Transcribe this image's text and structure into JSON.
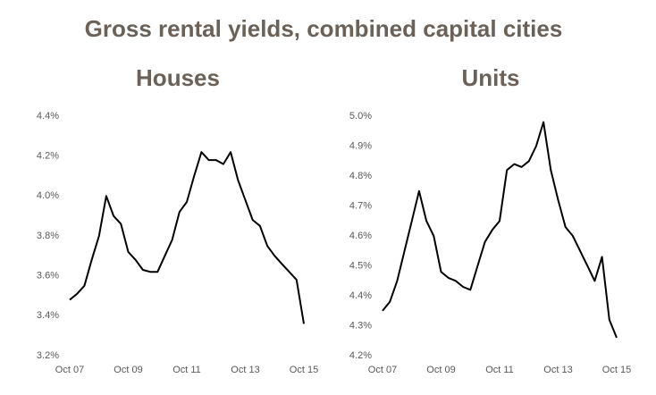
{
  "title": "Gross rental yields, combined capital cities",
  "chart_data": [
    {
      "type": "line",
      "title": "Houses",
      "color": "#000000",
      "categories": [
        "Oct 07",
        null,
        null,
        null,
        null,
        null,
        null,
        null,
        "Oct 09",
        null,
        null,
        null,
        null,
        null,
        null,
        null,
        "Oct 11",
        null,
        null,
        null,
        null,
        null,
        null,
        null,
        "Oct 13",
        null,
        null,
        null,
        null,
        null,
        null,
        null,
        "Oct 15"
      ],
      "values": [
        3.48,
        3.51,
        3.55,
        3.68,
        3.8,
        4.0,
        3.9,
        3.86,
        3.72,
        3.68,
        3.63,
        3.62,
        3.62,
        3.7,
        3.78,
        3.92,
        3.97,
        4.1,
        4.22,
        4.18,
        4.18,
        4.16,
        4.22,
        4.08,
        3.98,
        3.88,
        3.85,
        3.75,
        3.7,
        3.66,
        3.62,
        3.58,
        3.36
      ],
      "ylim": [
        3.2,
        4.4
      ],
      "yticks": [
        {
          "value": 3.2,
          "label": "3.2%"
        },
        {
          "value": 3.4,
          "label": "3.4%"
        },
        {
          "value": 3.6,
          "label": "3.6%"
        },
        {
          "value": 3.8,
          "label": "3.8%"
        },
        {
          "value": 4.0,
          "label": "4.0%"
        },
        {
          "value": 4.2,
          "label": "4.2%"
        },
        {
          "value": 4.4,
          "label": "4.4%"
        }
      ]
    },
    {
      "type": "line",
      "title": "Units",
      "color": "#000000",
      "categories": [
        "Oct 07",
        null,
        null,
        null,
        null,
        null,
        null,
        null,
        "Oct 09",
        null,
        null,
        null,
        null,
        null,
        null,
        null,
        "Oct 11",
        null,
        null,
        null,
        null,
        null,
        null,
        null,
        "Oct 13",
        null,
        null,
        null,
        null,
        null,
        null,
        null,
        "Oct 15"
      ],
      "values": [
        4.35,
        4.38,
        4.45,
        4.55,
        4.65,
        4.75,
        4.65,
        4.6,
        4.48,
        4.46,
        4.45,
        4.43,
        4.42,
        4.5,
        4.58,
        4.62,
        4.65,
        4.82,
        4.84,
        4.83,
        4.85,
        4.9,
        4.98,
        4.82,
        4.72,
        4.63,
        4.6,
        4.55,
        4.5,
        4.45,
        4.53,
        4.32,
        4.26
      ],
      "ylim": [
        4.2,
        5.0
      ],
      "yticks": [
        {
          "value": 4.2,
          "label": "4.2%"
        },
        {
          "value": 4.3,
          "label": "4.3%"
        },
        {
          "value": 4.4,
          "label": "4.4%"
        },
        {
          "value": 4.5,
          "label": "4.5%"
        },
        {
          "value": 4.6,
          "label": "4.6%"
        },
        {
          "value": 4.7,
          "label": "4.7%"
        },
        {
          "value": 4.8,
          "label": "4.8%"
        },
        {
          "value": 4.9,
          "label": "4.9%"
        },
        {
          "value": 5.0,
          "label": "5.0%"
        }
      ]
    }
  ]
}
